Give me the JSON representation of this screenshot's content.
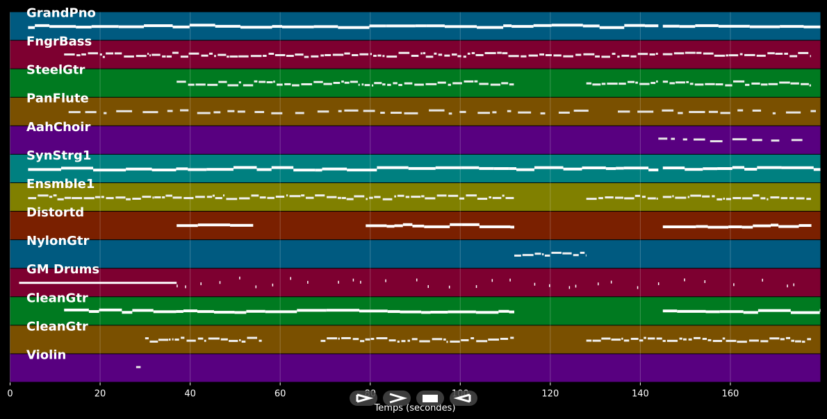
{
  "chart_data": {
    "type": "piano-roll",
    "xlabel": "Temps (secondes)",
    "xlim": [
      0,
      180
    ],
    "xticks": [
      0,
      20,
      40,
      60,
      80,
      100,
      120,
      140,
      160
    ],
    "tick_labels": [
      "0",
      "20",
      "40",
      "60",
      "80",
      "100",
      "120",
      "140",
      "160"
    ],
    "grid": true,
    "tracks": [
      {
        "name": "GrandPno",
        "color": "#005a80",
        "style": "solid",
        "segments": [
          [
            4,
            144
          ],
          [
            145,
            180
          ]
        ]
      },
      {
        "name": "FngrBass",
        "color": "#7d0030",
        "style": "dense",
        "segments": [
          [
            12,
            144
          ],
          [
            145,
            178
          ]
        ]
      },
      {
        "name": "SteelGtr",
        "color": "#007a20",
        "style": "dense",
        "segments": [
          [
            37,
            112
          ],
          [
            128,
            144
          ],
          [
            145,
            178
          ]
        ]
      },
      {
        "name": "PanFlute",
        "color": "#7a5000",
        "style": "sparse",
        "segments": [
          [
            13,
            129
          ],
          [
            135,
            179
          ]
        ]
      },
      {
        "name": "AahChoir",
        "color": "#580080",
        "style": "sparse",
        "segments": [
          [
            144,
            176
          ]
        ]
      },
      {
        "name": "SynStrg1",
        "color": "#008080",
        "style": "solid",
        "segments": [
          [
            4,
            144
          ],
          [
            145,
            180
          ]
        ]
      },
      {
        "name": "Ensmble1",
        "color": "#808000",
        "style": "dense",
        "segments": [
          [
            4,
            112
          ],
          [
            128,
            144
          ],
          [
            145,
            178
          ]
        ]
      },
      {
        "name": "Distortd",
        "color": "#7a2000",
        "style": "solid",
        "segments": [
          [
            37,
            54
          ],
          [
            79,
            112
          ],
          [
            145,
            178
          ]
        ]
      },
      {
        "name": "NylonGtr",
        "color": "#005a80",
        "style": "dense",
        "segments": [
          [
            112,
            128
          ]
        ]
      },
      {
        "name": "GM Drums",
        "color": "#7d0030",
        "style": "drums",
        "segments": [
          [
            2,
            37
          ],
          [
            37,
            177
          ]
        ]
      },
      {
        "name": "CleanGtr",
        "color": "#007a20",
        "style": "solid",
        "segments": [
          [
            12,
            112
          ],
          [
            145,
            180
          ]
        ]
      },
      {
        "name": "CleanGtr",
        "color": "#7a5000",
        "style": "dense",
        "segments": [
          [
            30,
            56
          ],
          [
            69,
            112
          ],
          [
            128,
            178
          ]
        ]
      },
      {
        "name": "Violin",
        "color": "#580080",
        "style": "sparse",
        "segments": [
          [
            28,
            29
          ]
        ]
      }
    ]
  },
  "controls": [
    {
      "icon": "play-outline-icon",
      "label": "Play"
    },
    {
      "icon": "forward-icon",
      "label": "Forward"
    },
    {
      "icon": "stop-icon",
      "label": "Stop"
    },
    {
      "icon": "back-icon",
      "label": "Back"
    }
  ]
}
